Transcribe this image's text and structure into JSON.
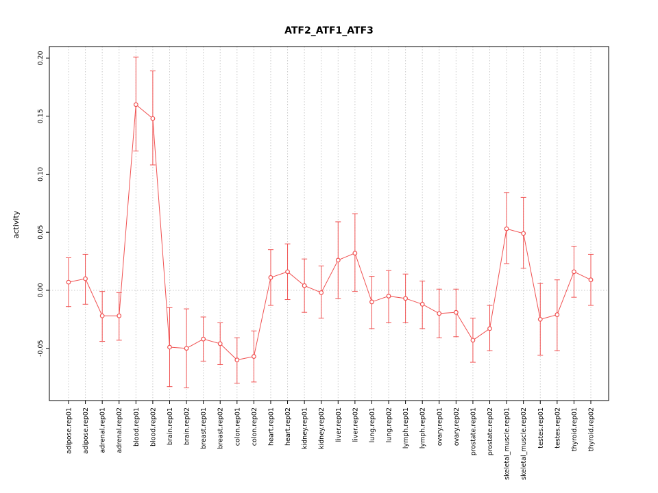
{
  "chart_data": {
    "type": "line",
    "title": "ATF2_ATF1_ATF3",
    "xlabel": "",
    "ylabel": "activity",
    "ylim": [
      -0.095,
      0.21
    ],
    "yticks": [
      -0.05,
      0.0,
      0.05,
      0.1,
      0.15,
      0.2
    ],
    "grid": "dotted vertical per category, dotted horizontal at 0",
    "legend_position": "none",
    "point_style": "open-circle with error bars",
    "series_color": "#f05050",
    "grid_color": "#c8c8c8",
    "categories": [
      "adipose.rep01",
      "adipose.rep02",
      "adrenal.rep01",
      "adrenal.rep02",
      "blood.rep01",
      "blood.rep02",
      "brain.rep01",
      "brain.rep02",
      "breast.rep01",
      "breast.rep02",
      "colon.rep01",
      "colon.rep02",
      "heart.rep01",
      "heart.rep02",
      "kidney.rep01",
      "kidney.rep02",
      "liver.rep01",
      "liver.rep02",
      "lung.rep01",
      "lung.rep02",
      "lymph.rep01",
      "lymph.rep02",
      "ovary.rep01",
      "ovary.rep02",
      "prostate.rep01",
      "prostate.rep02",
      "skeletal_muscle.rep01",
      "skeletal_muscle.rep02",
      "testes.rep01",
      "testes.rep02",
      "thyroid.rep01",
      "thyroid.rep02"
    ],
    "values": [
      0.007,
      0.01,
      -0.022,
      -0.022,
      0.16,
      0.148,
      -0.049,
      -0.05,
      -0.042,
      -0.046,
      -0.06,
      -0.057,
      0.011,
      0.016,
      0.004,
      -0.002,
      0.026,
      0.032,
      -0.01,
      -0.005,
      -0.007,
      -0.012,
      -0.02,
      -0.019,
      -0.043,
      -0.033,
      0.053,
      0.049,
      -0.025,
      -0.021,
      0.016,
      0.009
    ],
    "lower": [
      -0.014,
      -0.012,
      -0.044,
      -0.043,
      0.12,
      0.108,
      -0.083,
      -0.084,
      -0.061,
      -0.064,
      -0.08,
      -0.079,
      -0.013,
      -0.008,
      -0.019,
      -0.024,
      -0.007,
      -0.001,
      -0.033,
      -0.028,
      -0.028,
      -0.033,
      -0.041,
      -0.04,
      -0.062,
      -0.052,
      0.023,
      0.019,
      -0.056,
      -0.052,
      -0.006,
      -0.013
    ],
    "upper": [
      0.028,
      0.031,
      -0.001,
      -0.002,
      0.201,
      0.189,
      -0.015,
      -0.016,
      -0.023,
      -0.028,
      -0.041,
      -0.035,
      0.035,
      0.04,
      0.027,
      0.021,
      0.059,
      0.066,
      0.012,
      0.017,
      0.014,
      0.008,
      0.001,
      0.001,
      -0.024,
      -0.013,
      0.084,
      0.08,
      0.006,
      0.009,
      0.038,
      0.031
    ]
  }
}
